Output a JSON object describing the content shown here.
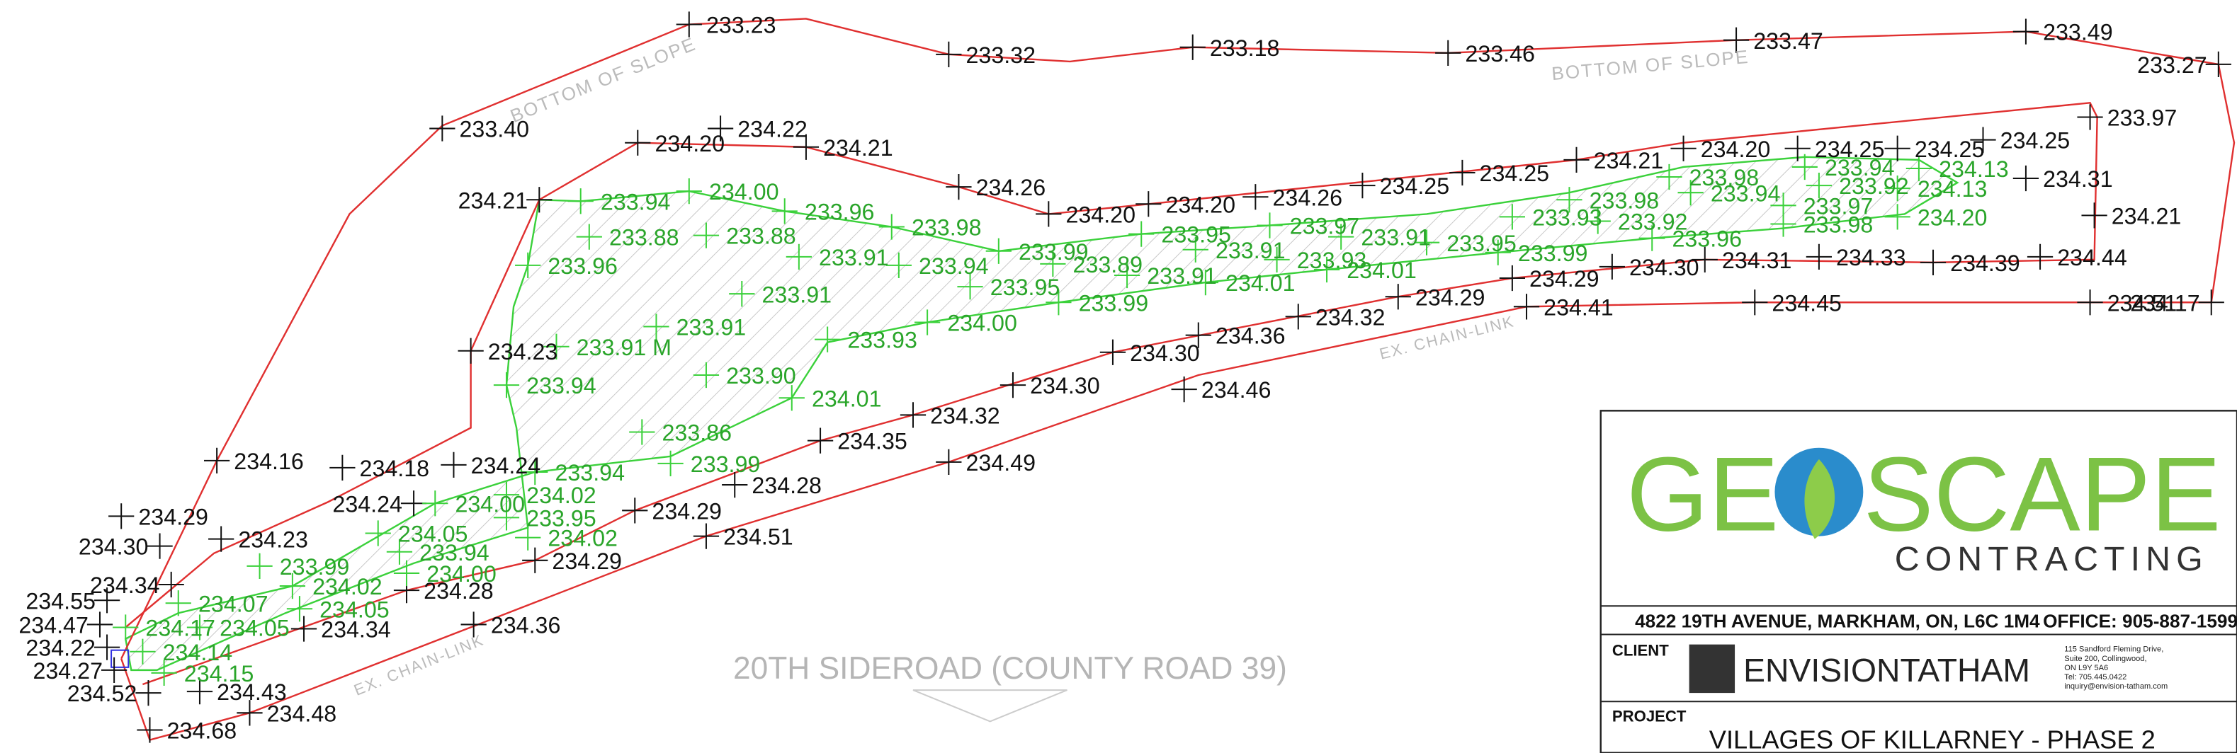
{
  "elevations": [
    "233.23",
    "233.32",
    "233.18",
    "233.46",
    "233.47",
    "233.49",
    "233.27",
    "233.40",
    "234.20",
    "234.22",
    "234.21",
    "234.26",
    "234.21",
    "234.20",
    "234.20",
    "234.26",
    "234.25",
    "234.25",
    "234.21",
    "234.20",
    "234.25",
    "234.25",
    "234.25",
    "233.97",
    "234.31",
    "234.21",
    "234.44",
    "234.17",
    "234.51",
    "234.39",
    "234.33",
    "234.31",
    "234.30",
    "234.29",
    "234.41",
    "234.45",
    "234.29",
    "234.32",
    "234.36",
    "234.30",
    "234.46",
    "234.30",
    "234.32",
    "234.35",
    "234.49",
    "234.23",
    "234.16",
    "234.18",
    "234.24",
    "234.28",
    "234.24",
    "234.29",
    "234.30",
    "234.29",
    "234.23",
    "234.51",
    "234.34",
    "234.29",
    "234.28",
    "234.55",
    "234.47",
    "234.34",
    "234.36",
    "234.22",
    "234.27",
    "234.43",
    "234.52",
    "234.48",
    "234.68"
  ],
  "area_elevations": [
    "233.94",
    "234.00",
    "233.96",
    "233.98",
    "233.88",
    "233.88",
    "233.91",
    "233.96",
    "233.94",
    "233.99",
    "233.89",
    "233.95",
    "233.91",
    "233.97",
    "233.91",
    "233.93",
    "233.95",
    "233.99",
    "233.98",
    "233.93",
    "233.92",
    "233.96",
    "233.98",
    "233.94",
    "233.94",
    "234.13",
    "233.92",
    "234.13",
    "233.97",
    "233.98",
    "234.20",
    "233.91",
    "233.95",
    "233.91",
    "234.01",
    "234.01",
    "233.99",
    "234.00",
    "233.93",
    "233.91",
    "233.91 M",
    "233.94",
    "233.90",
    "234.01",
    "233.86",
    "233.99",
    "233.94",
    "234.00",
    "234.02",
    "233.95",
    "234.05",
    "234.02",
    "233.94",
    "233.99",
    "234.00",
    "234.02",
    "234.07",
    "234.05",
    "234.17",
    "234.05",
    "234.14",
    "234.15"
  ],
  "notes": {
    "slope_left": "BOTTOM OF SLOPE",
    "slope_right": "BOTTOM OF SLOPE",
    "fence_right": "EX. CHAIN-LINK",
    "fence_left": "EX. CHAIN-LINK",
    "road": "20TH SIDEROAD (COUNTY ROAD 39)"
  },
  "title_block": {
    "logo_left": "GE",
    "logo_right": "SCAPE",
    "logo_sub": "CONTRACTING",
    "address": "4822 19TH AVENUE, MARKHAM, ON, L6C 1M4",
    "office": "OFFICE: 905-887-1599",
    "client_label": "CLIENT",
    "client_name": "ENVISIONTATHAM",
    "client_address": [
      "115 Sandford Fleming Drive,",
      "Suite 200, Collingwood,",
      "ON L9Y 5A6",
      "Tel: 705.445.0422",
      "inquiry@envision-tatham.com"
    ],
    "project_label": "PROJECT",
    "project_name": "VILLAGES OF KILLARNEY - PHASE 2"
  }
}
